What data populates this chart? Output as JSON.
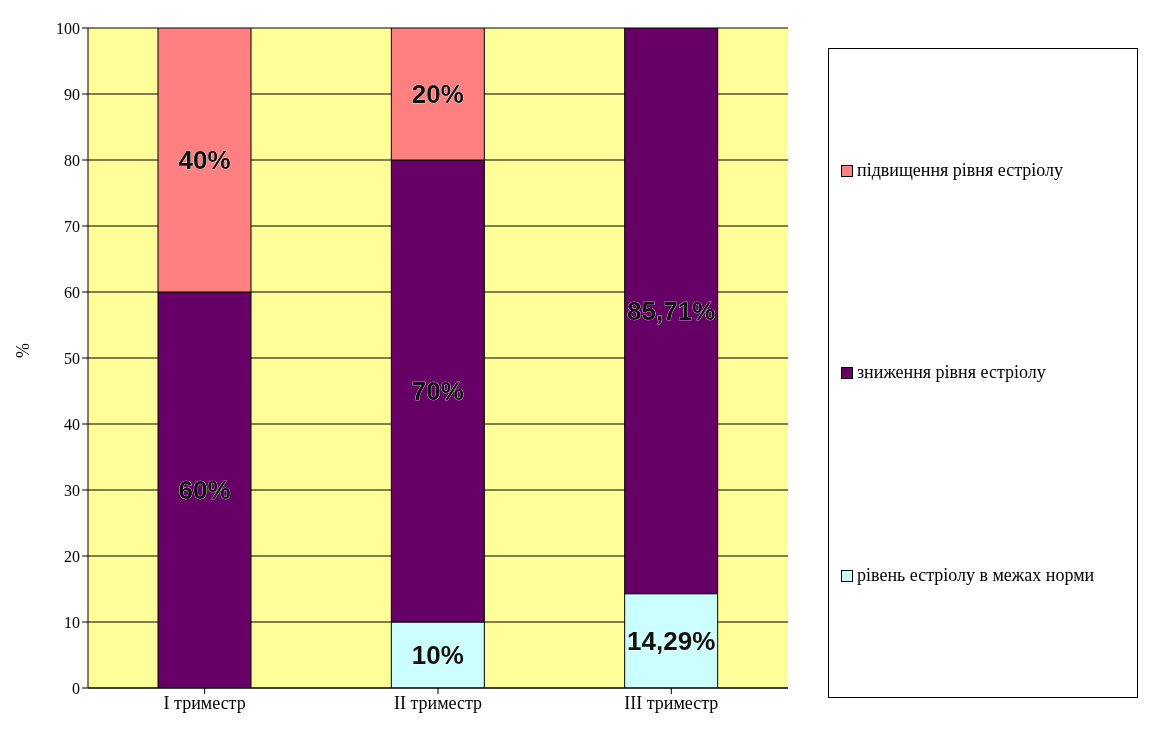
{
  "chart_data": {
    "type": "bar",
    "stacked": true,
    "categories": [
      "I триместр",
      "II триместр",
      "III триместр"
    ],
    "ylabel": "%",
    "ylim": [
      0,
      100
    ],
    "yticks": [
      0,
      10,
      20,
      30,
      40,
      50,
      60,
      70,
      80,
      90,
      100
    ],
    "grid": "y",
    "legend": "right",
    "series": [
      {
        "name": "рівень естріолу в межах норми",
        "color": "#ccffff",
        "values": [
          0,
          10,
          14.29
        ],
        "value_labels": [
          null,
          "10%",
          "14,29%"
        ]
      },
      {
        "name": "зниження рівня естріолу",
        "color": "#660066",
        "values": [
          60,
          70,
          85.71
        ],
        "value_labels": [
          "60%",
          "70%",
          "85,71%"
        ]
      },
      {
        "name": "підвищення рівня естріолу",
        "color": "#ff8080",
        "values": [
          40,
          20,
          0
        ],
        "value_labels": [
          "40%",
          "20%",
          null
        ]
      }
    ]
  }
}
